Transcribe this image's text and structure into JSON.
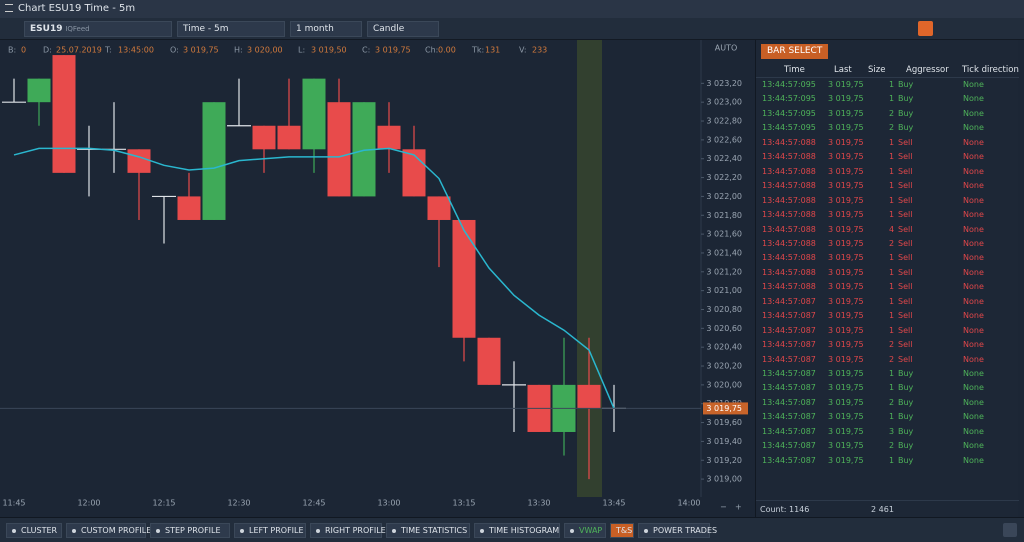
{
  "window": {
    "title": "Chart ESU19 Time - 5m"
  },
  "toolbar": {
    "symbol": "ESU19",
    "feed": "IQFeed",
    "timeframe": "Time - 5m",
    "period": "1 month",
    "chart_type": "Candle"
  },
  "info": [
    {
      "label": "B:",
      "value": "0"
    },
    {
      "label": "D:",
      "value": "25.07.2019"
    },
    {
      "label": "T:",
      "value": "13:45:00"
    },
    {
      "label": "O:",
      "value": "3 019,75"
    },
    {
      "label": "H:",
      "value": "3 020,00"
    },
    {
      "label": "L:",
      "value": "3 019,50"
    },
    {
      "label": "C:",
      "value": "3 019,75"
    },
    {
      "label": "Ch:",
      "value": "0.00"
    },
    {
      "label": "Tk:",
      "value": "131"
    },
    {
      "label": "V:",
      "value": "233"
    }
  ],
  "chart_data": {
    "type": "candlestick",
    "scale_mode": "AUTO",
    "categories": [
      "11:45",
      null,
      null,
      "12:00",
      null,
      null,
      "12:15",
      null,
      null,
      "12:30",
      null,
      null,
      "12:45",
      null,
      null,
      "13:00",
      null,
      null,
      "13:15",
      null,
      null,
      "13:30",
      null,
      null,
      "13:45",
      null,
      null,
      "14:00"
    ],
    "open": [
      3023.0,
      3023.0,
      3023.5,
      3022.5,
      3022.5,
      3022.5,
      3022.0,
      3022.0,
      3021.75,
      3022.75,
      3022.75,
      3022.75,
      3022.5,
      3023.0,
      3022.0,
      3022.75,
      3022.5,
      3022.0,
      3021.75,
      3020.5,
      3020.0,
      3020.0,
      3019.5,
      3020.0,
      3019.75,
      null,
      null,
      null
    ],
    "high": [
      3023.25,
      3023.25,
      3023.5,
      3022.75,
      3023.0,
      3022.5,
      3022.0,
      3022.25,
      3023.0,
      3023.25,
      3022.75,
      3023.25,
      3023.25,
      3023.25,
      3023.0,
      3023.0,
      3022.75,
      3022.0,
      3021.75,
      3020.5,
      3020.25,
      3020.0,
      3020.5,
      3020.5,
      3020.0,
      null,
      null,
      null
    ],
    "low": [
      3023.0,
      3022.75,
      3022.25,
      3022.0,
      3022.25,
      3021.75,
      3021.5,
      3021.75,
      3021.75,
      3022.75,
      3022.25,
      3022.5,
      3022.25,
      3022.0,
      3022.0,
      3022.25,
      3022.0,
      3021.25,
      3020.25,
      3020.0,
      3019.5,
      3019.5,
      3019.25,
      3019.0,
      3019.5,
      null,
      null,
      null
    ],
    "close": [
      3023.0,
      3023.25,
      3022.25,
      3022.5,
      3022.5,
      3022.25,
      3022.0,
      3021.75,
      3023.0,
      3022.75,
      3022.5,
      3022.5,
      3023.25,
      3022.0,
      3023.0,
      3022.5,
      3022.0,
      3021.75,
      3020.5,
      3020.0,
      3020.0,
      3019.5,
      3020.0,
      3019.75,
      3019.75,
      null,
      null,
      null
    ],
    "up_color": "#3faa58",
    "down_color": "#e84b4b",
    "doji_color": "#dfe3e8",
    "vwap": {
      "name": "VWAP",
      "color": "#2ab7cf",
      "values": [
        3022.44,
        3022.51,
        3022.51,
        3022.51,
        3022.49,
        3022.42,
        3022.33,
        3022.28,
        3022.3,
        3022.38,
        3022.4,
        3022.42,
        3022.42,
        3022.42,
        3022.49,
        3022.51,
        3022.44,
        3022.19,
        3021.64,
        3021.24,
        3020.95,
        3020.74,
        3020.58,
        3020.37,
        3019.75,
        null,
        null,
        null
      ]
    },
    "last_price": {
      "value": 3019.75,
      "label": "3 019,75"
    },
    "ylim": [
      3018.81,
      3023.66
    ],
    "yticks": [
      {
        "value": 3019.0,
        "label": "3 019,00"
      },
      {
        "value": 3019.2,
        "label": "3 019,20"
      },
      {
        "value": 3019.4,
        "label": "3 019,40"
      },
      {
        "value": 3019.6,
        "label": "3 019,60"
      },
      {
        "value": 3019.8,
        "label": "3 019,80"
      },
      {
        "value": 3020.0,
        "label": "3 020,00"
      },
      {
        "value": 3020.2,
        "label": "3 020,20"
      },
      {
        "value": 3020.4,
        "label": "3 020,40"
      },
      {
        "value": 3020.6,
        "label": "3 020,60"
      },
      {
        "value": 3020.8,
        "label": "3 020,80"
      },
      {
        "value": 3021.0,
        "label": "3 021,00"
      },
      {
        "value": 3021.2,
        "label": "3 021,20"
      },
      {
        "value": 3021.4,
        "label": "3 021,40"
      },
      {
        "value": 3021.6,
        "label": "3 021,60"
      },
      {
        "value": 3021.8,
        "label": "3 021,80"
      },
      {
        "value": 3022.0,
        "label": "3 022,00"
      },
      {
        "value": 3022.2,
        "label": "3 022,20"
      },
      {
        "value": 3022.4,
        "label": "3 022,40"
      },
      {
        "value": 3022.6,
        "label": "3 022,60"
      },
      {
        "value": 3022.8,
        "label": "3 022,80"
      },
      {
        "value": 3023.0,
        "label": "3 023,00"
      },
      {
        "value": 3023.2,
        "label": "3 023,20"
      }
    ],
    "grid": false
  },
  "trades": {
    "button": "BAR SELECT",
    "columns": [
      "Time",
      "Last",
      "Size",
      "Aggressor",
      "Tick direction"
    ],
    "rows": [
      [
        "13:44:57:095",
        "3 019,75",
        1,
        "Buy",
        "None"
      ],
      [
        "13:44:57:095",
        "3 019,75",
        1,
        "Buy",
        "None"
      ],
      [
        "13:44:57:095",
        "3 019,75",
        2,
        "Buy",
        "None"
      ],
      [
        "13:44:57:095",
        "3 019,75",
        2,
        "Buy",
        "None"
      ],
      [
        "13:44:57:088",
        "3 019,75",
        1,
        "Sell",
        "None"
      ],
      [
        "13:44:57:088",
        "3 019,75",
        1,
        "Sell",
        "None"
      ],
      [
        "13:44:57:088",
        "3 019,75",
        1,
        "Sell",
        "None"
      ],
      [
        "13:44:57:088",
        "3 019,75",
        1,
        "Sell",
        "None"
      ],
      [
        "13:44:57:088",
        "3 019,75",
        1,
        "Sell",
        "None"
      ],
      [
        "13:44:57:088",
        "3 019,75",
        1,
        "Sell",
        "None"
      ],
      [
        "13:44:57:088",
        "3 019,75",
        4,
        "Sell",
        "None"
      ],
      [
        "13:44:57:088",
        "3 019,75",
        2,
        "Sell",
        "None"
      ],
      [
        "13:44:57:088",
        "3 019,75",
        1,
        "Sell",
        "None"
      ],
      [
        "13:44:57:088",
        "3 019,75",
        1,
        "Sell",
        "None"
      ],
      [
        "13:44:57:088",
        "3 019,75",
        1,
        "Sell",
        "None"
      ],
      [
        "13:44:57:087",
        "3 019,75",
        1,
        "Sell",
        "None"
      ],
      [
        "13:44:57:087",
        "3 019,75",
        1,
        "Sell",
        "None"
      ],
      [
        "13:44:57:087",
        "3 019,75",
        1,
        "Sell",
        "None"
      ],
      [
        "13:44:57:087",
        "3 019,75",
        2,
        "Sell",
        "None"
      ],
      [
        "13:44:57:087",
        "3 019,75",
        2,
        "Sell",
        "None"
      ],
      [
        "13:44:57:087",
        "3 019,75",
        1,
        "Buy",
        "None"
      ],
      [
        "13:44:57:087",
        "3 019,75",
        1,
        "Buy",
        "None"
      ],
      [
        "13:44:57:087",
        "3 019,75",
        2,
        "Buy",
        "None"
      ],
      [
        "13:44:57:087",
        "3 019,75",
        1,
        "Buy",
        "None"
      ],
      [
        "13:44:57:087",
        "3 019,75",
        3,
        "Buy",
        "None"
      ],
      [
        "13:44:57:087",
        "3 019,75",
        2,
        "Buy",
        "None"
      ],
      [
        "13:44:57:087",
        "3 019,75",
        1,
        "Buy",
        "None"
      ]
    ],
    "count_label": "Count:",
    "count": 1146,
    "volume": "2 461"
  },
  "bottom_bar": [
    "CLUSTER",
    "CUSTOM PROFILE",
    "STEP PROFILE",
    "LEFT PROFILE",
    "RIGHT PROFILE",
    "TIME STATISTICS",
    "TIME HISTOGRAM",
    "VWAP",
    "T&S",
    "POWER TRADES"
  ]
}
